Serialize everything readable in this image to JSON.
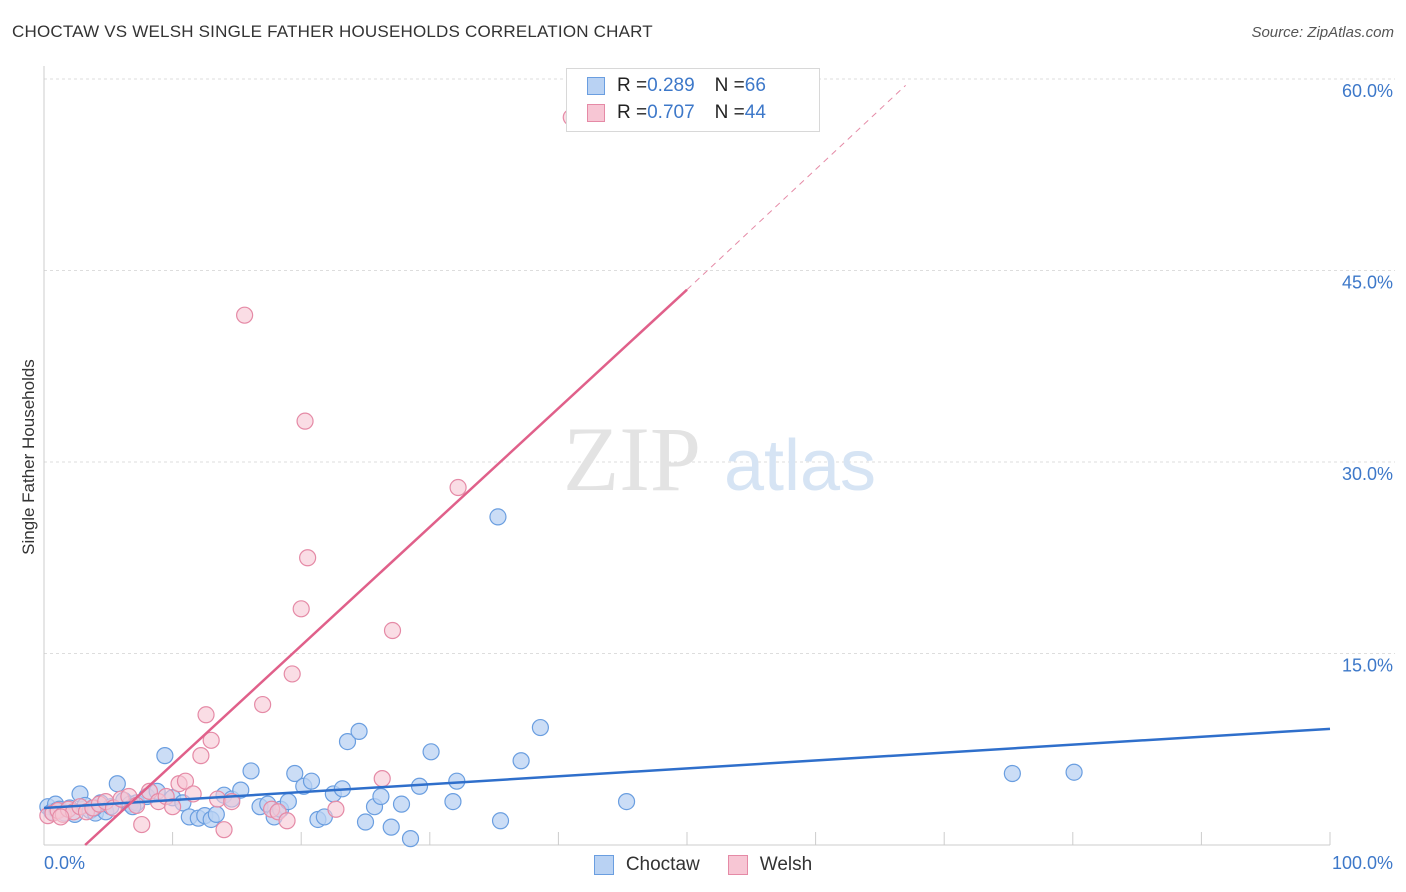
{
  "title": "CHOCTAW VS WELSH SINGLE FATHER HOUSEHOLDS CORRELATION CHART",
  "source": "Source: ZipAtlas.com",
  "watermark": {
    "zip": "ZIP",
    "atlas": "atlas"
  },
  "colors": {
    "choctaw": "#6a9ee0",
    "choctaw_fill": "#b9d2f3",
    "choctaw_line": "#2f6fcb",
    "welsh": "#e58aa6",
    "welsh_fill": "#f7c6d4",
    "welsh_line": "#e0608a",
    "grid": "#dddddd",
    "accent_text": "#3d78c9"
  },
  "legend_top": {
    "rows": [
      {
        "series": "Choctaw",
        "r_label": "R = ",
        "r_value": "0.289",
        "n_label": "N = ",
        "n_value": "66"
      },
      {
        "series": "Welsh",
        "r_label": "R = ",
        "r_value": "0.707",
        "n_label": "N = ",
        "n_value": "44"
      }
    ]
  },
  "chart_data": {
    "type": "scatter",
    "title": "CHOCTAW VS WELSH SINGLE FATHER HOUSEHOLDS CORRELATION CHART",
    "xlabel": "",
    "ylabel": "Single Father Households",
    "xlim": [
      0,
      100
    ],
    "ylim": [
      0,
      62
    ],
    "x_tick_labels": [
      "0.0%",
      "100.0%"
    ],
    "y_ticks": [
      15,
      30,
      45,
      60
    ],
    "y_tick_labels": [
      "15.0%",
      "30.0%",
      "45.0%",
      "60.0%"
    ],
    "grid": true,
    "legend": "top-center and bottom",
    "series": [
      {
        "name": "Choctaw",
        "r": 0.289,
        "n": 66,
        "trend": {
          "x0": 0,
          "y0": 2.9,
          "x1": 100,
          "y1": 9.1
        },
        "points": [
          [
            0.3,
            3.0
          ],
          [
            0.6,
            2.6
          ],
          [
            0.9,
            3.2
          ],
          [
            1.2,
            2.8
          ],
          [
            1.6,
            2.5
          ],
          [
            2.0,
            2.9
          ],
          [
            2.4,
            2.4
          ],
          [
            2.8,
            4.0
          ],
          [
            3.2,
            3.1
          ],
          [
            3.6,
            2.7
          ],
          [
            4.0,
            2.5
          ],
          [
            4.4,
            3.3
          ],
          [
            4.8,
            2.6
          ],
          [
            5.2,
            3.0
          ],
          [
            5.7,
            4.8
          ],
          [
            6.2,
            3.5
          ],
          [
            6.7,
            3.2
          ],
          [
            7.2,
            3.3
          ],
          [
            8.0,
            3.8
          ],
          [
            8.8,
            4.2
          ],
          [
            9.4,
            7.0
          ],
          [
            10.0,
            3.7
          ],
          [
            10.8,
            3.3
          ],
          [
            11.3,
            2.2
          ],
          [
            12.0,
            2.1
          ],
          [
            12.5,
            2.3
          ],
          [
            13.0,
            2.0
          ],
          [
            13.4,
            2.4
          ],
          [
            14.0,
            3.9
          ],
          [
            14.6,
            3.6
          ],
          [
            15.3,
            4.3
          ],
          [
            16.1,
            5.8
          ],
          [
            16.8,
            3.0
          ],
          [
            17.4,
            3.2
          ],
          [
            17.9,
            2.2
          ],
          [
            18.4,
            2.8
          ],
          [
            19.0,
            3.4
          ],
          [
            19.5,
            5.6
          ],
          [
            20.2,
            4.6
          ],
          [
            20.8,
            5.0
          ],
          [
            21.3,
            2.0
          ],
          [
            21.8,
            2.2
          ],
          [
            22.5,
            4.0
          ],
          [
            23.2,
            4.4
          ],
          [
            23.6,
            8.1
          ],
          [
            24.5,
            8.9
          ],
          [
            25.0,
            1.8
          ],
          [
            25.7,
            3.0
          ],
          [
            26.2,
            3.8
          ],
          [
            27.0,
            1.4
          ],
          [
            27.8,
            3.2
          ],
          [
            28.5,
            0.5
          ],
          [
            29.2,
            4.6
          ],
          [
            30.1,
            7.3
          ],
          [
            31.8,
            3.4
          ],
          [
            32.1,
            5.0
          ],
          [
            35.5,
            1.9
          ],
          [
            35.3,
            25.7
          ],
          [
            37.1,
            6.6
          ],
          [
            38.6,
            9.2
          ],
          [
            45.3,
            3.4
          ],
          [
            75.3,
            5.6
          ],
          [
            80.1,
            5.7
          ],
          [
            1.0,
            2.7
          ],
          [
            3.9,
            2.9
          ],
          [
            6.9,
            3.0
          ]
        ]
      },
      {
        "name": "Welsh",
        "r": 0.707,
        "n": 44,
        "trend": {
          "x0": 3.2,
          "y0": 0,
          "x1": 50,
          "y1": 43.5
        },
        "trend_dashed": {
          "x0": 50,
          "y0": 43.5,
          "x1": 67,
          "y1": 59.5
        },
        "points": [
          [
            0.3,
            2.3
          ],
          [
            0.7,
            2.5
          ],
          [
            1.1,
            2.7
          ],
          [
            1.5,
            2.4
          ],
          [
            1.9,
            2.8
          ],
          [
            2.3,
            2.6
          ],
          [
            2.8,
            3.0
          ],
          [
            3.3,
            2.6
          ],
          [
            3.8,
            2.9
          ],
          [
            4.3,
            3.2
          ],
          [
            4.8,
            3.4
          ],
          [
            5.4,
            2.9
          ],
          [
            6.0,
            3.6
          ],
          [
            6.6,
            3.8
          ],
          [
            7.2,
            3.1
          ],
          [
            7.6,
            1.6
          ],
          [
            8.2,
            4.2
          ],
          [
            8.9,
            3.4
          ],
          [
            9.5,
            3.8
          ],
          [
            10.0,
            3.0
          ],
          [
            10.5,
            4.8
          ],
          [
            11.0,
            5.0
          ],
          [
            11.6,
            4.0
          ],
          [
            12.2,
            7.0
          ],
          [
            12.6,
            10.2
          ],
          [
            13.0,
            8.2
          ],
          [
            13.5,
            3.6
          ],
          [
            14.0,
            1.2
          ],
          [
            14.6,
            3.4
          ],
          [
            15.6,
            41.5
          ],
          [
            17.0,
            11.0
          ],
          [
            17.7,
            2.8
          ],
          [
            18.2,
            2.6
          ],
          [
            18.9,
            1.9
          ],
          [
            19.3,
            13.4
          ],
          [
            20.0,
            18.5
          ],
          [
            20.3,
            33.2
          ],
          [
            20.5,
            22.5
          ],
          [
            22.7,
            2.8
          ],
          [
            26.3,
            5.2
          ],
          [
            27.1,
            16.8
          ],
          [
            32.2,
            28.0
          ],
          [
            41.0,
            57.0
          ],
          [
            1.3,
            2.2
          ]
        ]
      }
    ]
  },
  "legend_bottom": {
    "items": [
      {
        "label": "Choctaw"
      },
      {
        "label": "Welsh"
      }
    ]
  }
}
